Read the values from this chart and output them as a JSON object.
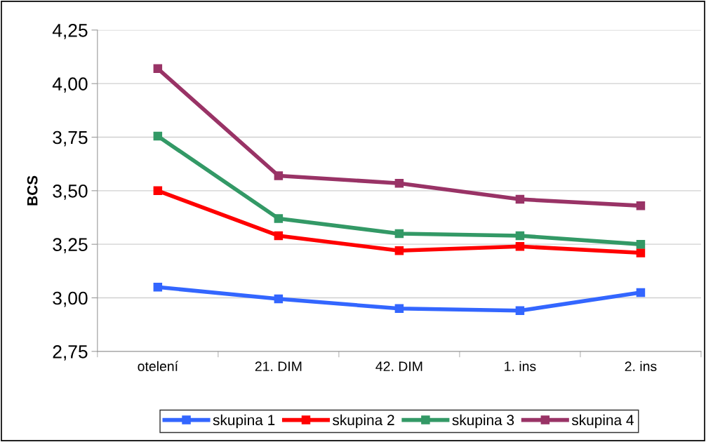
{
  "chart_data": {
    "type": "line",
    "ylabel": "BCS",
    "categories": [
      "otelení",
      "21. DIM",
      "42. DIM",
      "1. ins",
      "2. ins"
    ],
    "series": [
      {
        "name": "skupina 1",
        "color": "#3366ff",
        "values": [
          3.05,
          2.995,
          2.95,
          2.94,
          3.025
        ]
      },
      {
        "name": "skupina 2",
        "color": "#ff0000",
        "values": [
          3.5,
          3.29,
          3.22,
          3.24,
          3.21
        ]
      },
      {
        "name": "skupina 3",
        "color": "#339966",
        "values": [
          3.755,
          3.37,
          3.3,
          3.29,
          3.25
        ]
      },
      {
        "name": "skupina 4",
        "color": "#993366",
        "values": [
          4.07,
          3.57,
          3.535,
          3.46,
          3.43
        ]
      }
    ],
    "ylim": [
      2.75,
      4.25
    ],
    "yticks": [
      {
        "value": 2.75,
        "label": "2,75"
      },
      {
        "value": 3.0,
        "label": "3,00"
      },
      {
        "value": 3.25,
        "label": "3,25"
      },
      {
        "value": 3.5,
        "label": "3,50"
      },
      {
        "value": 3.75,
        "label": "3,75"
      },
      {
        "value": 4.0,
        "label": "4,00"
      },
      {
        "value": 4.25,
        "label": "4,25"
      }
    ],
    "grid": "y",
    "legend": "bottom",
    "marker": "square",
    "line_style": "solid"
  }
}
